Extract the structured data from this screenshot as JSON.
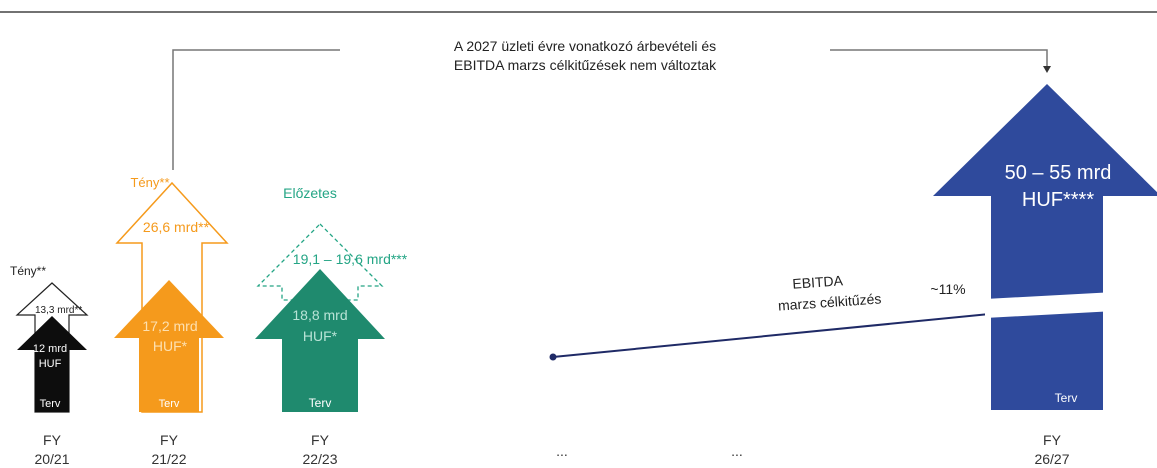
{
  "colors": {
    "black": "#0d0d0d",
    "orange": "#f59a1c",
    "teal": "#1f8a6e",
    "teal_text": "#24a585",
    "navy": "#2f4a9c",
    "line": "#1f2a66"
  },
  "callout": {
    "line1": "A 2027 üzleti évre vonatkozó árbevételi és",
    "line2": "EBITDA marzs célkitűzések nem változtak"
  },
  "chart_data": {
    "type": "bar",
    "categories": [
      "FY 20/21",
      "FY 21/22",
      "FY 22/23",
      "",
      "",
      "FY 26/27"
    ],
    "axis_labels": [
      {
        "line1": "FY",
        "line2": "20/21"
      },
      {
        "line1": "FY",
        "line2": "21/22"
      },
      {
        "line1": "FY",
        "line2": "22/23"
      },
      {
        "line1": "...",
        "line2": ""
      },
      {
        "line1": "...",
        "line2": ""
      },
      {
        "line1": "FY",
        "line2": "26/27"
      }
    ],
    "columns": [
      {
        "plan_value": 12,
        "plan_label": "12 mrd",
        "plan_label2": "HUF",
        "plan_tag": "Terv",
        "actual_value": 13.3,
        "actual_label": "13,3 mrd",
        "actual_suffix": "**",
        "actual_tag": "Tény**"
      },
      {
        "plan_value": 17.2,
        "plan_label": "17,2 mrd",
        "plan_label2": "HUF*",
        "plan_tag": "Terv",
        "actual_value": 26.6,
        "actual_label": "26,6 mrd",
        "actual_suffix": "**",
        "actual_tag": "Tény**"
      },
      {
        "plan_value": 18.8,
        "plan_label": "18,8 mrd",
        "plan_label2": "HUF*",
        "plan_tag": "Terv",
        "actual_value": 19.6,
        "actual_label": "19,1 – 19,6 mrd***",
        "actual_tag": "Előzetes"
      },
      {
        "plan_value": 55,
        "plan_label": "50 – 55 mrd",
        "plan_label2": "HUF****",
        "plan_tag": "Terv"
      }
    ],
    "ebitda": {
      "label1": "EBITDA",
      "label2": "marzs célkitűzés",
      "target": "~11%"
    }
  }
}
